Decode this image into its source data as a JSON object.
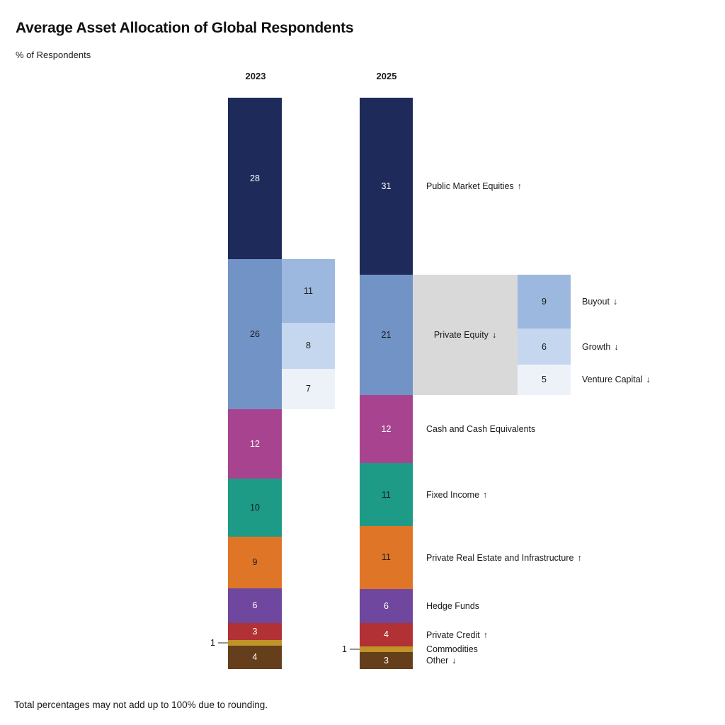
{
  "header": {
    "title": "Average Asset Allocation of Global Respondents",
    "subtitle": "% of Respondents"
  },
  "footnote": "Total percentages may not add up to 100% due to rounding.",
  "chart_data": {
    "type": "bar",
    "variant": "stacked-percent-comparison",
    "title": "Average Asset Allocation of Global Respondents",
    "unit_label": "% of Respondents",
    "columns": [
      "2023",
      "2025"
    ],
    "legend_position": "right-of-2025-bar",
    "connector_color": "#D9D9D9",
    "leader_line_color": "#949494",
    "arrows": {
      "up": "↑",
      "down": "↓"
    },
    "categories": [
      {
        "label": "Public Market Equities",
        "trend": "up",
        "values": [
          28,
          31
        ],
        "color": "#1E2A5A",
        "value_color": "#FFFFFF"
      },
      {
        "label": "Private Equity",
        "trend": "down",
        "values": [
          26,
          21
        ],
        "color": "#7193C5",
        "value_color": "#1A1A1A",
        "has_breakdown": true
      },
      {
        "label": "Cash and Cash Equivalents",
        "trend": "",
        "values": [
          12,
          12
        ],
        "color": "#A8448F",
        "value_color": "#FFFFFF"
      },
      {
        "label": "Fixed Income",
        "trend": "up",
        "values": [
          10,
          11
        ],
        "color": "#1D9B87",
        "value_color": "#1A1A1A"
      },
      {
        "label": "Private Real Estate and Infrastructure",
        "trend": "up",
        "values": [
          9,
          11
        ],
        "color": "#DF7527",
        "value_color": "#1A1A1A"
      },
      {
        "label": "Hedge Funds",
        "trend": "",
        "values": [
          6,
          6
        ],
        "color": "#6F479E",
        "value_color": "#FFFFFF"
      },
      {
        "label": "Private Credit",
        "trend": "up",
        "values": [
          3,
          4
        ],
        "color": "#B13134",
        "value_color": "#FFFFFF"
      },
      {
        "label": "Commodities",
        "trend": "",
        "values": [
          1,
          1
        ],
        "color": "#C09228",
        "value_color": "#1A1A1A",
        "value_outside": true
      },
      {
        "label": "Other",
        "trend": "down",
        "values": [
          4,
          3
        ],
        "color": "#653E1B",
        "value_color": "#FFFFFF"
      }
    ],
    "private_equity_breakdown": {
      "connector_label": "Private Equity",
      "connector_trend": "down",
      "segments": [
        {
          "label": "Buyout",
          "trend": "down",
          "values": [
            11,
            9
          ],
          "color": "#9CB8DE",
          "value_color": "#1A1A1A"
        },
        {
          "label": "Growth",
          "trend": "down",
          "values": [
            8,
            6
          ],
          "color": "#C5D7EE",
          "value_color": "#1A1A1A"
        },
        {
          "label": "Venture Capital",
          "trend": "down",
          "values": [
            7,
            5
          ],
          "color": "#EDF2F9",
          "value_color": "#1A1A1A"
        }
      ]
    }
  }
}
